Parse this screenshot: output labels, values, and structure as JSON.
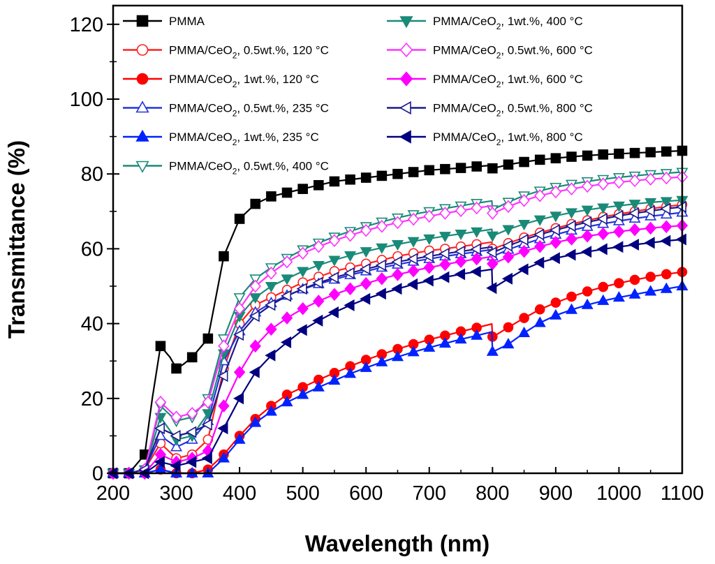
{
  "chart_data": {
    "type": "line",
    "title": "",
    "xlabel": "Wavelength (nm)",
    "ylabel": "Transmittance (%)",
    "xlim": [
      200,
      1100
    ],
    "ylim": [
      0,
      125
    ],
    "xticks": [
      200,
      300,
      400,
      500,
      600,
      700,
      800,
      900,
      1000,
      1100
    ],
    "yticks": [
      0,
      20,
      40,
      60,
      80,
      100,
      120
    ],
    "grid": false,
    "legend_position": "top-left-and-top-center",
    "series": [
      {
        "name": "PMMA",
        "legend": {
          "base": "PMMA",
          "sub": "",
          "tail": ""
        },
        "color": "#000000",
        "marker": "square",
        "filled": true,
        "x": [
          200,
          225,
          250,
          262,
          275,
          290,
          300,
          310,
          325,
          350,
          375,
          400,
          425,
          450,
          475,
          500,
          525,
          550,
          575,
          600,
          625,
          650,
          675,
          700,
          725,
          750,
          775,
          799,
          800,
          801,
          825,
          850,
          875,
          900,
          925,
          950,
          975,
          1000,
          1025,
          1050,
          1075,
          1100
        ],
        "y": [
          0,
          0,
          5,
          20,
          34,
          31,
          28,
          29,
          31,
          36,
          58,
          68,
          72,
          74,
          75,
          76,
          77,
          78,
          78.5,
          79,
          79.5,
          80,
          80.5,
          81,
          81.3,
          81.6,
          82,
          82.3,
          81.5,
          81.5,
          82.5,
          83.2,
          83.8,
          84.2,
          84.6,
          84.9,
          85.2,
          85.4,
          85.6,
          85.8,
          86,
          86.2
        ]
      },
      {
        "name": "PMMA/CeO2, 0.5wt.%, 120 °C",
        "legend": {
          "base": "PMMA/CeO",
          "sub": "2",
          "tail": ", 0.5wt.%, 120 °C"
        },
        "color": "#ff2020",
        "marker": "circle",
        "filled": false,
        "x": [
          200,
          225,
          250,
          275,
          300,
          325,
          350,
          375,
          400,
          425,
          450,
          475,
          500,
          525,
          550,
          575,
          600,
          625,
          650,
          675,
          700,
          725,
          750,
          775,
          799,
          800,
          801,
          825,
          850,
          875,
          900,
          925,
          950,
          975,
          1000,
          1025,
          1050,
          1075,
          1100
        ],
        "y": [
          0,
          0,
          1,
          8,
          4,
          5,
          9,
          28,
          40,
          45,
          47,
          49,
          51,
          52.5,
          54,
          55,
          56,
          57,
          58,
          58.8,
          59.5,
          60,
          60.6,
          61.2,
          61.8,
          60,
          60,
          61.5,
          63,
          64.3,
          65.5,
          66.6,
          67.6,
          68.5,
          69.3,
          70,
          70.7,
          71.3,
          71.8
        ]
      },
      {
        "name": "PMMA/CeO2, 1wt.%, 120 °C",
        "legend": {
          "base": "PMMA/CeO",
          "sub": "2",
          "tail": ", 1wt.%, 120 °C"
        },
        "color": "#ff0000",
        "marker": "circle",
        "filled": true,
        "x": [
          200,
          225,
          250,
          275,
          300,
          325,
          350,
          375,
          400,
          425,
          450,
          475,
          500,
          525,
          550,
          575,
          600,
          625,
          650,
          675,
          700,
          725,
          750,
          775,
          799,
          800,
          801,
          825,
          850,
          875,
          900,
          925,
          950,
          975,
          1000,
          1025,
          1050,
          1075,
          1100
        ],
        "y": [
          0,
          0,
          0,
          1,
          0,
          0,
          1,
          5,
          10,
          14.5,
          18,
          21,
          23,
          25,
          26.8,
          28.6,
          30.3,
          31.8,
          33.2,
          34.5,
          35.7,
          36.8,
          37.9,
          38.9,
          39.9,
          36.5,
          36.5,
          39,
          41.5,
          43.8,
          45.6,
          47.2,
          48.6,
          49.8,
          50.8,
          51.7,
          52.5,
          53.2,
          53.8
        ]
      },
      {
        "name": "PMMA/CeO2, 0.5wt.%, 235 °C",
        "legend": {
          "base": "PMMA/CeO",
          "sub": "2",
          "tail": ", 0.5wt.%, 235 °C"
        },
        "color": "#2233dd",
        "marker": "triangle-up",
        "filled": false,
        "x": [
          200,
          225,
          250,
          275,
          300,
          325,
          350,
          375,
          400,
          425,
          450,
          475,
          500,
          525,
          550,
          575,
          600,
          625,
          650,
          675,
          700,
          725,
          750,
          775,
          799,
          800,
          801,
          825,
          850,
          875,
          900,
          925,
          950,
          975,
          1000,
          1025,
          1050,
          1075,
          1100
        ],
        "y": [
          0,
          0,
          1,
          10,
          7,
          9,
          14,
          30,
          38,
          43,
          45.5,
          47.5,
          49.2,
          50.6,
          51.8,
          53,
          54,
          55,
          55.8,
          56.6,
          57.3,
          58,
          58.6,
          59.2,
          59.8,
          58,
          58,
          59.8,
          61.3,
          62.6,
          63.8,
          64.9,
          65.9,
          66.7,
          67.4,
          68.1,
          68.7,
          69.2,
          69.7
        ]
      },
      {
        "name": "PMMA/CeO2, 1wt.%, 235 °C",
        "legend": {
          "base": "PMMA/CeO",
          "sub": "2",
          "tail": ", 1wt.%, 235 °C"
        },
        "color": "#0022ff",
        "marker": "triangle-up",
        "filled": true,
        "x": [
          200,
          225,
          250,
          275,
          300,
          325,
          350,
          375,
          400,
          425,
          450,
          475,
          500,
          525,
          550,
          575,
          600,
          625,
          650,
          675,
          700,
          725,
          750,
          775,
          799,
          800,
          801,
          825,
          850,
          875,
          900,
          925,
          950,
          975,
          1000,
          1025,
          1050,
          1075,
          1100
        ],
        "y": [
          0,
          0,
          0,
          1,
          0,
          0,
          0,
          4,
          9,
          13.5,
          16.5,
          19,
          21,
          23,
          24.8,
          26.6,
          28.2,
          29.7,
          31.1,
          32.4,
          33.6,
          34.7,
          35.8,
          36.8,
          37.8,
          32.5,
          32.5,
          34.5,
          37.5,
          40.2,
          42.2,
          43.7,
          45,
          46.1,
          47,
          47.8,
          48.6,
          49.3,
          50
        ]
      },
      {
        "name": "PMMA/CeO2, 0.5wt.%, 400 °C",
        "legend": {
          "base": "PMMA/CeO",
          "sub": "2",
          "tail": ", 0.5wt.%, 400 °C"
        },
        "color": "#1a8a78",
        "marker": "triangle-down",
        "filled": false,
        "x": [
          200,
          225,
          250,
          275,
          300,
          325,
          350,
          375,
          400,
          425,
          450,
          475,
          500,
          525,
          550,
          575,
          600,
          625,
          650,
          675,
          700,
          725,
          750,
          775,
          799,
          800,
          801,
          825,
          850,
          875,
          900,
          925,
          950,
          975,
          1000,
          1025,
          1050,
          1075,
          1100
        ],
        "y": [
          0,
          0,
          1,
          18,
          14,
          15,
          20,
          36,
          47,
          52,
          55,
          57.5,
          59.8,
          61.6,
          63.2,
          64.7,
          66,
          67.2,
          68.3,
          69.2,
          70,
          70.8,
          71.5,
          72.2,
          72.8,
          70.5,
          70.5,
          72.5,
          74.2,
          75.5,
          76.5,
          77.3,
          78,
          78.6,
          79.1,
          79.5,
          79.9,
          80.2,
          80.5
        ]
      },
      {
        "name": "PMMA/CeO2, 1wt.%, 400 °C",
        "legend": {
          "base": "PMMA/CeO",
          "sub": "2",
          "tail": ", 1wt.%, 400 °C"
        },
        "color": "#1a8a78",
        "marker": "triangle-down",
        "filled": true,
        "x": [
          200,
          225,
          250,
          275,
          300,
          325,
          350,
          375,
          400,
          425,
          450,
          475,
          500,
          525,
          550,
          575,
          600,
          625,
          650,
          675,
          700,
          725,
          750,
          775,
          799,
          800,
          801,
          825,
          850,
          875,
          900,
          925,
          950,
          975,
          1000,
          1025,
          1050,
          1075,
          1100
        ],
        "y": [
          0,
          0,
          1,
          15,
          9,
          10,
          16,
          32,
          42,
          47,
          50,
          52,
          54,
          55.6,
          57,
          58.2,
          59.3,
          60.3,
          61.2,
          62,
          62.7,
          63.4,
          64,
          64.6,
          65.2,
          63.5,
          63.5,
          65.2,
          66.6,
          67.8,
          68.8,
          69.7,
          70.4,
          71,
          71.5,
          72,
          72.4,
          72.7,
          73
        ]
      },
      {
        "name": "PMMA/CeO2, 0.5wt.%, 600 °C",
        "legend": {
          "base": "PMMA/CeO",
          "sub": "2",
          "tail": ", 0.5wt.%, 600 °C"
        },
        "color": "#ff33ff",
        "marker": "diamond",
        "filled": false,
        "x": [
          200,
          225,
          250,
          275,
          300,
          325,
          350,
          375,
          400,
          425,
          450,
          475,
          500,
          525,
          550,
          575,
          600,
          625,
          650,
          675,
          700,
          725,
          750,
          775,
          799,
          800,
          801,
          825,
          850,
          875,
          900,
          925,
          950,
          975,
          1000,
          1025,
          1050,
          1075,
          1100
        ],
        "y": [
          0,
          0,
          1,
          19,
          15,
          16,
          19,
          34,
          44,
          50,
          53.5,
          56.5,
          58.8,
          60.6,
          62.2,
          63.6,
          64.9,
          66,
          67,
          67.9,
          68.7,
          69.5,
          70.2,
          70.9,
          71.5,
          69.5,
          69.5,
          71.3,
          72.9,
          74.2,
          75.2,
          76,
          76.7,
          77.3,
          77.8,
          78.2,
          78.6,
          78.9,
          79.2
        ]
      },
      {
        "name": "PMMA/CeO2, 1wt.%, 600 °C",
        "legend": {
          "base": "PMMA/CeO",
          "sub": "2",
          "tail": ", 1wt.%, 600 °C"
        },
        "color": "#ff00ff",
        "marker": "diamond",
        "filled": true,
        "x": [
          200,
          225,
          250,
          275,
          300,
          325,
          350,
          375,
          400,
          425,
          450,
          475,
          500,
          525,
          550,
          575,
          600,
          625,
          650,
          675,
          700,
          725,
          750,
          775,
          799,
          800,
          801,
          825,
          850,
          875,
          900,
          925,
          950,
          975,
          1000,
          1025,
          1050,
          1075,
          1100
        ],
        "y": [
          0,
          0,
          0,
          5,
          3,
          4,
          6,
          18,
          27,
          34,
          38.5,
          41.5,
          44,
          46,
          47.8,
          49.3,
          50.7,
          52,
          53.1,
          54.1,
          55,
          55.8,
          56.6,
          57.3,
          57.9,
          56,
          56,
          57.8,
          59.3,
          60.6,
          61.7,
          62.6,
          63.4,
          64,
          64.6,
          65.1,
          65.5,
          65.9,
          66.2
        ]
      },
      {
        "name": "PMMA/CeO2, 0.5wt.%, 800 °C",
        "legend": {
          "base": "PMMA/CeO",
          "sub": "2",
          "tail": ", 0.5wt.%, 800 °C"
        },
        "color": "#1a1a8c",
        "marker": "triangle-left",
        "filled": false,
        "x": [
          200,
          225,
          250,
          275,
          300,
          325,
          350,
          375,
          400,
          425,
          450,
          475,
          500,
          525,
          550,
          575,
          600,
          625,
          650,
          675,
          700,
          725,
          750,
          775,
          799,
          800,
          801,
          825,
          850,
          875,
          900,
          925,
          950,
          975,
          1000,
          1025,
          1050,
          1075,
          1100
        ],
        "y": [
          0,
          0,
          1,
          12,
          10,
          11,
          13,
          26,
          37,
          42,
          45,
          47.4,
          49.3,
          50.9,
          52.3,
          53.5,
          54.6,
          55.6,
          56.5,
          57.3,
          58,
          58.7,
          59.3,
          59.9,
          60.5,
          59,
          59,
          60.8,
          62.4,
          63.8,
          65,
          66.1,
          67.1,
          68,
          68.8,
          69.5,
          70.1,
          70.7,
          71.2
        ]
      },
      {
        "name": "PMMA/CeO2, 1wt.%, 800 °C",
        "legend": {
          "base": "PMMA/CeO",
          "sub": "2",
          "tail": ", 1wt.%, 800 °C"
        },
        "color": "#000080",
        "marker": "triangle-left",
        "filled": true,
        "x": [
          200,
          225,
          250,
          275,
          300,
          325,
          350,
          375,
          400,
          425,
          450,
          475,
          500,
          525,
          550,
          575,
          600,
          625,
          650,
          675,
          700,
          725,
          750,
          775,
          799,
          800,
          801,
          825,
          850,
          875,
          900,
          925,
          950,
          975,
          1000,
          1025,
          1050,
          1075,
          1100
        ],
        "y": [
          0,
          0,
          0,
          3,
          2,
          3,
          4,
          12,
          20,
          27,
          31.5,
          35,
          38.3,
          40.8,
          43,
          44.9,
          46.6,
          48,
          49.3,
          50.5,
          51.5,
          52.4,
          53.2,
          53.9,
          54.5,
          49.5,
          49.5,
          52,
          54.5,
          56.3,
          57.5,
          58.4,
          59.2,
          59.9,
          60.5,
          61.1,
          61.6,
          62.1,
          62.5
        ]
      }
    ]
  }
}
